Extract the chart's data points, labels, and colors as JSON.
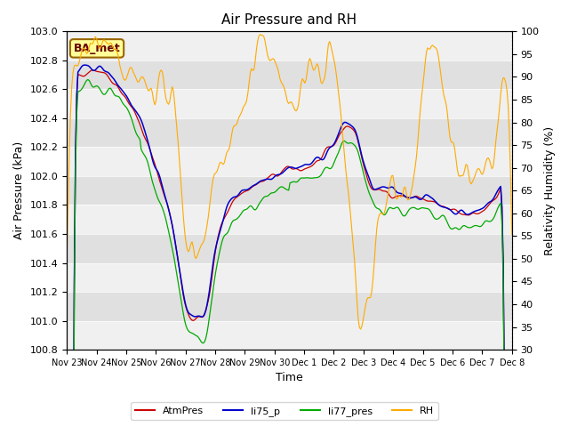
{
  "title": "Air Pressure and RH",
  "xlabel": "Time",
  "ylabel_left": "Air Pressure (kPa)",
  "ylabel_right": "Relativity Humidity (%)",
  "ylim_left": [
    100.8,
    103.0
  ],
  "ylim_right": [
    30,
    100
  ],
  "yticks_left": [
    100.8,
    101.0,
    101.2,
    101.4,
    101.6,
    101.8,
    102.0,
    102.2,
    102.4,
    102.6,
    102.8,
    103.0
  ],
  "yticks_right": [
    30,
    35,
    40,
    45,
    50,
    55,
    60,
    65,
    70,
    75,
    80,
    85,
    90,
    95,
    100
  ],
  "xtick_labels": [
    "Nov 23",
    "Nov 24",
    "Nov 25",
    "Nov 26",
    "Nov 27",
    "Nov 28",
    "Nov 29",
    "Nov 30",
    "Dec 1",
    "Dec 2",
    "Dec 3",
    "Dec 4",
    "Dec 5",
    "Dec 6",
    "Dec 7",
    "Dec 8"
  ],
  "bg_color": "#ffffff",
  "plot_bg_color": "#e0e0e0",
  "band_color": "#f0f0f0",
  "legend_entries": [
    "AtmPres",
    "li75_p",
    "li77_pres",
    "RH"
  ],
  "legend_colors": [
    "#cc0000",
    "#0000cc",
    "#00aa00",
    "#ffaa00"
  ],
  "annotation_text": "BA_met",
  "annotation_bg": "#ffff99",
  "annotation_border": "#996600"
}
